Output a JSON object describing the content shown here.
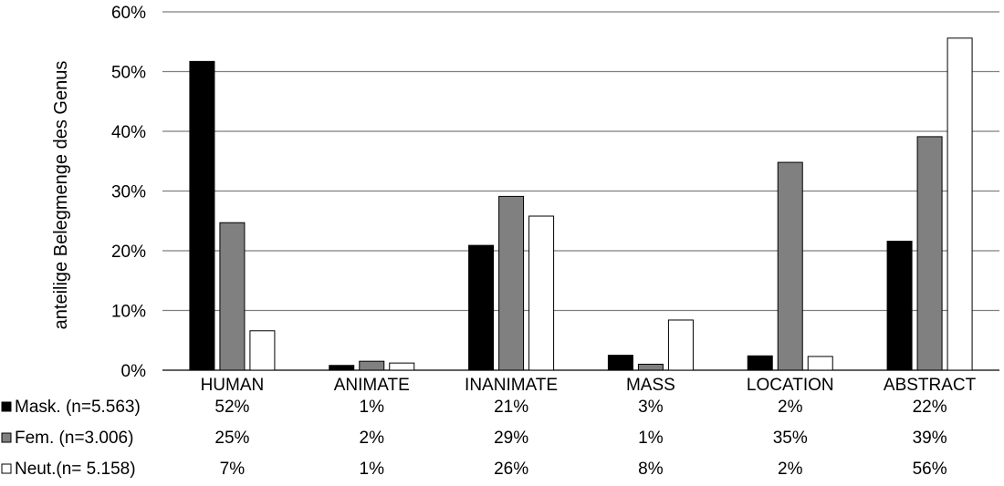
{
  "chart_data": {
    "type": "bar",
    "title": "",
    "xlabel": "",
    "ylabel": "anteilige Belegmenge des Genus",
    "ylim": [
      0,
      60
    ],
    "yticks": [
      "0%",
      "10%",
      "20%",
      "30%",
      "40%",
      "50%",
      "60%"
    ],
    "grid": true,
    "legend": "table-left",
    "categories": [
      "HUMAN",
      "ANIMATE",
      "INANIMATE",
      "MASS",
      "LOCATION",
      "ABSTRACT"
    ],
    "series": [
      {
        "name": "Mask. (n=5.563)",
        "color": "#000000",
        "values": [
          51.7,
          0.8,
          20.9,
          2.5,
          2.4,
          21.6
        ],
        "labels": [
          "52%",
          "1%",
          "21%",
          "3%",
          "2%",
          "22%"
        ]
      },
      {
        "name": "Fem. (n=3.006)",
        "color": "#808080",
        "values": [
          24.7,
          1.5,
          29.1,
          1.0,
          34.8,
          39.1
        ],
        "labels": [
          "25%",
          "2%",
          "29%",
          "1%",
          "35%",
          "39%"
        ]
      },
      {
        "name": "Neut.(n= 5.158)",
        "color": "#ffffff",
        "values": [
          6.6,
          1.2,
          25.8,
          8.4,
          2.3,
          55.6
        ],
        "labels": [
          "7%",
          "1%",
          "26%",
          "8%",
          "2%",
          "56%"
        ]
      }
    ]
  }
}
